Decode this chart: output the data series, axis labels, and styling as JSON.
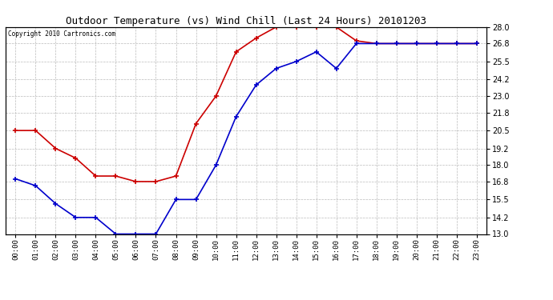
{
  "title": "Outdoor Temperature (vs) Wind Chill (Last 24 Hours) 20101203",
  "copyright": "Copyright 2010 Cartronics.com",
  "hours": [
    "00:00",
    "01:00",
    "02:00",
    "03:00",
    "04:00",
    "05:00",
    "06:00",
    "07:00",
    "08:00",
    "09:00",
    "10:00",
    "11:00",
    "12:00",
    "13:00",
    "14:00",
    "15:00",
    "16:00",
    "17:00",
    "18:00",
    "19:00",
    "20:00",
    "21:00",
    "22:00",
    "23:00"
  ],
  "red_data": [
    20.5,
    20.5,
    19.2,
    18.5,
    17.2,
    17.2,
    16.8,
    16.8,
    17.2,
    21.0,
    23.0,
    26.2,
    27.2,
    28.0,
    28.0,
    28.0,
    28.0,
    27.0,
    26.8,
    26.8,
    26.8,
    26.8,
    26.8,
    26.8
  ],
  "blue_data": [
    17.0,
    16.5,
    15.2,
    14.2,
    14.2,
    13.0,
    13.0,
    13.0,
    15.5,
    15.5,
    18.0,
    21.5,
    23.8,
    25.0,
    25.5,
    26.2,
    25.0,
    26.8,
    26.8,
    26.8,
    26.8,
    26.8,
    26.8,
    26.8
  ],
  "red_color": "#cc0000",
  "blue_color": "#0000cc",
  "bg_color": "#ffffff",
  "grid_color": "#bbbbbb",
  "ylim_min": 13.0,
  "ylim_max": 28.0,
  "yticks": [
    13.0,
    14.2,
    15.5,
    16.8,
    18.0,
    19.2,
    20.5,
    21.8,
    23.0,
    24.2,
    25.5,
    26.8,
    28.0
  ]
}
